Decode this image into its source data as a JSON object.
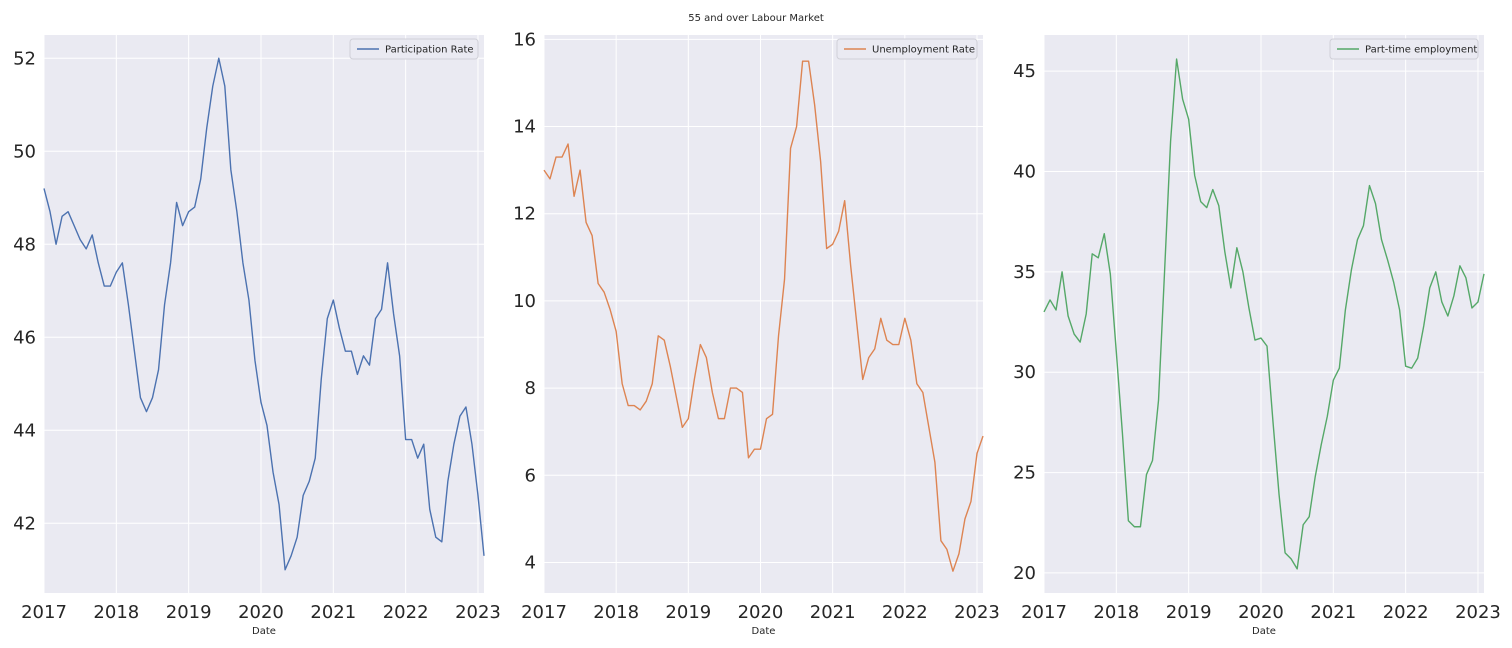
{
  "figure": {
    "title": "55 and over Labour Market"
  },
  "chart_data": [
    {
      "type": "line",
      "xlabel": "Date",
      "ylabel": "",
      "x_ticks": [
        "2017",
        "2018",
        "2019",
        "2020",
        "2021",
        "2022",
        "2023"
      ],
      "y_ticks": [
        "42",
        "44",
        "46",
        "48",
        "50",
        "52"
      ],
      "xlim": [
        "2017-01",
        "2023-02"
      ],
      "ylim": [
        40.5,
        52.5
      ],
      "grid": true,
      "legend": "top-right",
      "colors": {
        "line": "#4c72b0",
        "background": "#eaeaf2",
        "grid": "#ffffff"
      },
      "series": [
        {
          "name": "Participation Rate",
          "x": [
            "2017-01",
            "2017-02",
            "2017-03",
            "2017-04",
            "2017-05",
            "2017-06",
            "2017-07",
            "2017-08",
            "2017-09",
            "2017-10",
            "2017-11",
            "2017-12",
            "2018-01",
            "2018-02",
            "2018-03",
            "2018-04",
            "2018-05",
            "2018-06",
            "2018-07",
            "2018-08",
            "2018-09",
            "2018-10",
            "2018-11",
            "2018-12",
            "2019-01",
            "2019-02",
            "2019-03",
            "2019-04",
            "2019-05",
            "2019-06",
            "2019-07",
            "2019-08",
            "2019-09",
            "2019-10",
            "2019-11",
            "2019-12",
            "2020-01",
            "2020-02",
            "2020-03",
            "2020-04",
            "2020-05",
            "2020-06",
            "2020-07",
            "2020-08",
            "2020-09",
            "2020-10",
            "2020-11",
            "2020-12",
            "2021-01",
            "2021-02",
            "2021-03",
            "2021-04",
            "2021-05",
            "2021-06",
            "2021-07",
            "2021-08",
            "2021-09",
            "2021-10",
            "2021-11",
            "2021-12",
            "2022-01",
            "2022-02",
            "2022-03",
            "2022-04",
            "2022-05",
            "2022-06",
            "2022-07",
            "2022-08",
            "2022-09",
            "2022-10",
            "2022-11",
            "2022-12",
            "2023-01",
            "2023-02"
          ],
          "values": [
            49.2,
            48.7,
            48.0,
            48.6,
            48.7,
            48.4,
            48.1,
            47.9,
            48.2,
            47.6,
            47.1,
            47.1,
            47.4,
            47.6,
            46.7,
            45.7,
            44.7,
            44.4,
            44.7,
            45.3,
            46.7,
            47.6,
            48.9,
            48.4,
            48.7,
            48.8,
            49.4,
            50.5,
            51.4,
            52.0,
            51.4,
            49.6,
            48.7,
            47.6,
            46.8,
            45.5,
            44.6,
            44.1,
            43.1,
            42.4,
            41.0,
            41.3,
            41.7,
            42.6,
            42.9,
            43.4,
            45.1,
            46.4,
            46.8,
            46.2,
            45.7,
            45.7,
            45.2,
            45.6,
            45.4,
            46.4,
            46.6,
            47.6,
            46.5,
            45.6,
            43.8,
            43.8,
            43.4,
            43.7,
            42.3,
            41.7,
            41.6,
            42.9,
            43.7,
            44.3,
            44.5,
            43.7,
            42.6,
            41.3
          ]
        }
      ]
    },
    {
      "type": "line",
      "xlabel": "Date",
      "ylabel": "",
      "x_ticks": [
        "2017",
        "2018",
        "2019",
        "2020",
        "2021",
        "2022",
        "2023"
      ],
      "y_ticks": [
        "4",
        "6",
        "8",
        "10",
        "12",
        "14",
        "16"
      ],
      "xlim": [
        "2017-01",
        "2023-02"
      ],
      "ylim": [
        3.3,
        16.1
      ],
      "grid": true,
      "legend": "top-right",
      "colors": {
        "line": "#dd8452",
        "background": "#eaeaf2",
        "grid": "#ffffff"
      },
      "series": [
        {
          "name": "Unemployment Rate",
          "x": [
            "2017-01",
            "2017-02",
            "2017-03",
            "2017-04",
            "2017-05",
            "2017-06",
            "2017-07",
            "2017-08",
            "2017-09",
            "2017-10",
            "2017-11",
            "2017-12",
            "2018-01",
            "2018-02",
            "2018-03",
            "2018-04",
            "2018-05",
            "2018-06",
            "2018-07",
            "2018-08",
            "2018-09",
            "2018-10",
            "2018-11",
            "2018-12",
            "2019-01",
            "2019-02",
            "2019-03",
            "2019-04",
            "2019-05",
            "2019-06",
            "2019-07",
            "2019-08",
            "2019-09",
            "2019-10",
            "2019-11",
            "2019-12",
            "2020-01",
            "2020-02",
            "2020-03",
            "2020-04",
            "2020-05",
            "2020-06",
            "2020-07",
            "2020-08",
            "2020-09",
            "2020-10",
            "2020-11",
            "2020-12",
            "2021-01",
            "2021-02",
            "2021-03",
            "2021-04",
            "2021-05",
            "2021-06",
            "2021-07",
            "2021-08",
            "2021-09",
            "2021-10",
            "2021-11",
            "2021-12",
            "2022-01",
            "2022-02",
            "2022-03",
            "2022-04",
            "2022-05",
            "2022-06",
            "2022-07",
            "2022-08",
            "2022-09",
            "2022-10",
            "2022-11",
            "2022-12",
            "2023-01",
            "2023-02"
          ],
          "values": [
            13.0,
            12.8,
            13.3,
            13.3,
            13.6,
            12.4,
            13.0,
            11.8,
            11.5,
            10.4,
            10.2,
            9.8,
            9.3,
            8.1,
            7.6,
            7.6,
            7.5,
            7.7,
            8.1,
            9.2,
            9.1,
            8.5,
            7.8,
            7.1,
            7.3,
            8.2,
            9.0,
            8.7,
            7.9,
            7.3,
            7.3,
            8.0,
            8.0,
            7.9,
            6.4,
            6.6,
            6.6,
            7.3,
            7.4,
            9.2,
            10.5,
            13.5,
            14.0,
            15.5,
            15.5,
            14.5,
            13.2,
            11.2,
            11.3,
            11.6,
            12.3,
            10.8,
            9.5,
            8.2,
            8.7,
            8.9,
            9.6,
            9.1,
            9.0,
            9.0,
            9.6,
            9.1,
            8.1,
            7.9,
            7.1,
            6.3,
            4.5,
            4.3,
            3.8,
            4.2,
            5.0,
            5.4,
            6.5,
            6.9
          ]
        }
      ]
    },
    {
      "type": "line",
      "xlabel": "Date",
      "ylabel": "",
      "x_ticks": [
        "2017",
        "2018",
        "2019",
        "2020",
        "2021",
        "2022",
        "2023"
      ],
      "y_ticks": [
        "20",
        "25",
        "30",
        "35",
        "40",
        "45"
      ],
      "xlim": [
        "2017-01",
        "2023-02"
      ],
      "ylim": [
        19.0,
        46.8
      ],
      "grid": true,
      "legend": "top-right",
      "colors": {
        "line": "#55a868",
        "background": "#eaeaf2",
        "grid": "#ffffff"
      },
      "series": [
        {
          "name": "Part-time employment",
          "x": [
            "2017-01",
            "2017-02",
            "2017-03",
            "2017-04",
            "2017-05",
            "2017-06",
            "2017-07",
            "2017-08",
            "2017-09",
            "2017-10",
            "2017-11",
            "2017-12",
            "2018-01",
            "2018-02",
            "2018-03",
            "2018-04",
            "2018-05",
            "2018-06",
            "2018-07",
            "2018-08",
            "2018-09",
            "2018-10",
            "2018-11",
            "2018-12",
            "2019-01",
            "2019-02",
            "2019-03",
            "2019-04",
            "2019-05",
            "2019-06",
            "2019-07",
            "2019-08",
            "2019-09",
            "2019-10",
            "2019-11",
            "2019-12",
            "2020-01",
            "2020-02",
            "2020-03",
            "2020-04",
            "2020-05",
            "2020-06",
            "2020-07",
            "2020-08",
            "2020-09",
            "2020-10",
            "2020-11",
            "2020-12",
            "2021-01",
            "2021-02",
            "2021-03",
            "2021-04",
            "2021-05",
            "2021-06",
            "2021-07",
            "2021-08",
            "2021-09",
            "2021-10",
            "2021-11",
            "2021-12",
            "2022-01",
            "2022-02",
            "2022-03",
            "2022-04",
            "2022-05",
            "2022-06",
            "2022-07",
            "2022-08",
            "2022-09",
            "2022-10",
            "2022-11",
            "2022-12",
            "2023-01",
            "2023-02"
          ],
          "values": [
            33.0,
            33.6,
            33.1,
            35.0,
            32.8,
            31.9,
            31.5,
            32.9,
            35.9,
            35.7,
            36.9,
            34.9,
            31.0,
            27.0,
            22.6,
            22.3,
            22.3,
            24.9,
            25.6,
            28.6,
            35.0,
            41.5,
            45.6,
            43.6,
            42.6,
            39.8,
            38.5,
            38.2,
            39.1,
            38.3,
            36.0,
            34.2,
            36.2,
            35.0,
            33.2,
            31.6,
            31.7,
            31.3,
            27.5,
            23.9,
            21.0,
            20.7,
            20.2,
            22.4,
            22.8,
            24.8,
            26.4,
            27.8,
            29.6,
            30.2,
            33.1,
            35.1,
            36.6,
            37.3,
            39.3,
            38.4,
            36.6,
            35.6,
            34.5,
            33.1,
            30.3,
            30.2,
            30.7,
            32.3,
            34.2,
            35.0,
            33.5,
            32.8,
            33.8,
            35.3,
            34.7,
            33.2,
            33.5,
            34.9
          ]
        }
      ]
    }
  ]
}
